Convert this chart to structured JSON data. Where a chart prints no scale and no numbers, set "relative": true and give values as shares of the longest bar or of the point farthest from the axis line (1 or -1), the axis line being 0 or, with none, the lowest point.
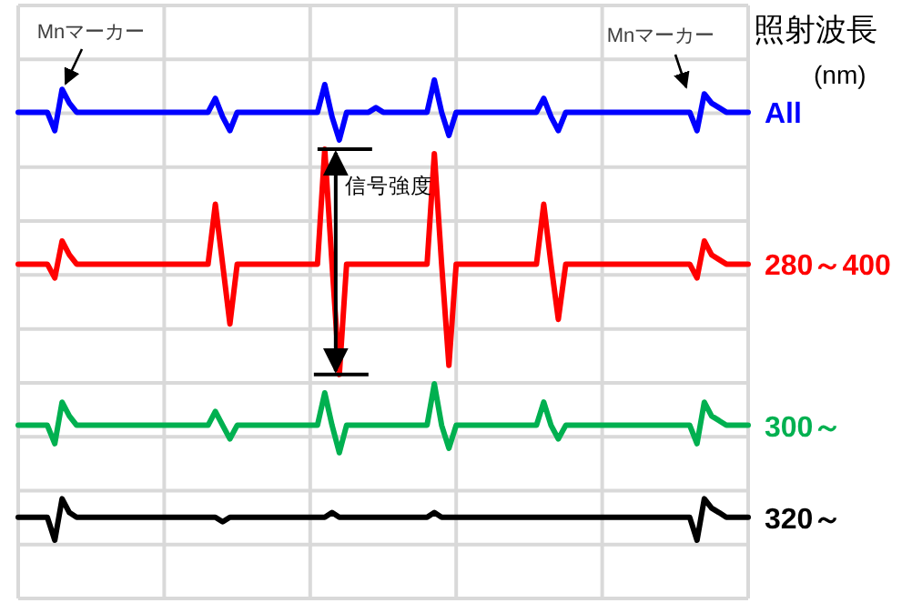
{
  "chart_data": {
    "type": "line",
    "relative": true,
    "grid": true,
    "legend_title": "照射波長 (nm)",
    "annotations": [
      "Mnマーカー",
      "Mnマーカー",
      "信号強度"
    ],
    "categories": [
      null,
      null,
      null,
      null,
      null,
      null,
      null,
      null,
      null,
      null,
      null,
      null,
      null,
      null,
      null,
      null,
      null,
      null,
      null,
      null,
      null,
      null,
      null,
      null,
      null,
      null,
      null,
      null,
      null,
      null,
      null,
      null,
      null,
      null,
      null,
      null,
      null,
      null,
      null,
      null,
      null,
      null,
      null,
      null,
      null,
      null,
      null,
      null,
      null,
      null,
      null,
      null,
      null,
      null,
      null,
      null,
      null,
      null,
      null,
      null,
      null,
      null,
      null,
      null,
      null,
      null,
      null,
      null,
      null,
      null,
      null,
      null,
      null,
      null,
      null,
      null,
      null,
      null,
      null,
      null,
      null,
      null,
      null,
      null,
      null,
      null,
      null,
      null,
      null,
      null,
      null,
      null,
      null,
      null,
      null,
      null,
      null,
      null,
      null,
      null,
      null
    ],
    "series": [
      {
        "name": "All",
        "color": "#0000ff",
        "values": [
          0.93,
          0.93,
          0.93,
          0.93,
          0.93,
          0.89,
          0.98,
          0.95,
          0.93,
          0.93,
          0.93,
          0.93,
          0.93,
          0.93,
          0.93,
          0.93,
          0.93,
          0.93,
          0.93,
          0.93,
          0.93,
          0.93,
          0.93,
          0.93,
          0.93,
          0.93,
          0.93,
          0.96,
          0.92,
          0.89,
          0.93,
          0.93,
          0.93,
          0.93,
          0.93,
          0.93,
          0.93,
          0.93,
          0.93,
          0.93,
          0.93,
          0.93,
          0.99,
          0.92,
          0.87,
          0.93,
          0.93,
          0.93,
          0.93,
          0.94,
          0.93,
          0.93,
          0.93,
          0.93,
          0.93,
          0.93,
          0.93,
          1.0,
          0.93,
          0.88,
          0.93,
          0.93,
          0.93,
          0.93,
          0.93,
          0.93,
          0.93,
          0.93,
          0.93,
          0.93,
          0.93,
          0.93,
          0.96,
          0.92,
          0.89,
          0.93,
          0.93,
          0.93,
          0.93,
          0.93,
          0.93,
          0.93,
          0.93,
          0.93,
          0.93,
          0.93,
          0.93,
          0.93,
          0.93,
          0.93,
          0.93,
          0.93,
          0.93,
          0.89,
          0.97,
          0.95,
          0.94,
          0.93,
          0.93,
          0.93,
          0.93
        ]
      },
      {
        "name": "280～400",
        "color": "#ff0000",
        "values": [
          0.6,
          0.6,
          0.6,
          0.6,
          0.6,
          0.57,
          0.65,
          0.62,
          0.6,
          0.6,
          0.6,
          0.6,
          0.6,
          0.6,
          0.6,
          0.6,
          0.6,
          0.6,
          0.6,
          0.6,
          0.6,
          0.6,
          0.6,
          0.6,
          0.6,
          0.6,
          0.6,
          0.73,
          0.6,
          0.47,
          0.6,
          0.6,
          0.6,
          0.6,
          0.6,
          0.6,
          0.6,
          0.6,
          0.6,
          0.6,
          0.6,
          0.6,
          0.85,
          0.6,
          0.36,
          0.6,
          0.6,
          0.6,
          0.6,
          0.6,
          0.6,
          0.6,
          0.6,
          0.6,
          0.6,
          0.6,
          0.6,
          0.84,
          0.6,
          0.38,
          0.6,
          0.6,
          0.6,
          0.6,
          0.6,
          0.6,
          0.6,
          0.6,
          0.6,
          0.6,
          0.6,
          0.6,
          0.73,
          0.6,
          0.48,
          0.6,
          0.6,
          0.6,
          0.6,
          0.6,
          0.6,
          0.6,
          0.6,
          0.6,
          0.6,
          0.6,
          0.6,
          0.6,
          0.6,
          0.6,
          0.6,
          0.6,
          0.6,
          0.57,
          0.65,
          0.62,
          0.61,
          0.6,
          0.6,
          0.6,
          0.6
        ]
      },
      {
        "name": "300～",
        "color": "#00b050",
        "values": [
          0.25,
          0.25,
          0.25,
          0.25,
          0.25,
          0.21,
          0.3,
          0.27,
          0.25,
          0.25,
          0.25,
          0.25,
          0.25,
          0.25,
          0.25,
          0.25,
          0.25,
          0.25,
          0.25,
          0.25,
          0.25,
          0.25,
          0.25,
          0.25,
          0.25,
          0.25,
          0.25,
          0.28,
          0.25,
          0.22,
          0.25,
          0.25,
          0.25,
          0.25,
          0.25,
          0.25,
          0.25,
          0.25,
          0.25,
          0.25,
          0.25,
          0.25,
          0.32,
          0.25,
          0.19,
          0.25,
          0.25,
          0.25,
          0.25,
          0.25,
          0.25,
          0.25,
          0.25,
          0.25,
          0.25,
          0.25,
          0.25,
          0.34,
          0.25,
          0.2,
          0.25,
          0.25,
          0.25,
          0.25,
          0.25,
          0.25,
          0.25,
          0.25,
          0.25,
          0.25,
          0.25,
          0.25,
          0.3,
          0.25,
          0.22,
          0.25,
          0.25,
          0.25,
          0.25,
          0.25,
          0.25,
          0.25,
          0.25,
          0.25,
          0.25,
          0.25,
          0.25,
          0.25,
          0.25,
          0.25,
          0.25,
          0.25,
          0.25,
          0.21,
          0.3,
          0.27,
          0.26,
          0.25,
          0.25,
          0.25,
          0.25
        ]
      },
      {
        "name": "320～",
        "color": "#000000",
        "values": [
          0.05,
          0.05,
          0.05,
          0.05,
          0.05,
          0.0,
          0.09,
          0.06,
          0.05,
          0.05,
          0.05,
          0.05,
          0.05,
          0.05,
          0.05,
          0.05,
          0.05,
          0.05,
          0.05,
          0.05,
          0.05,
          0.05,
          0.05,
          0.05,
          0.05,
          0.05,
          0.05,
          0.05,
          0.04,
          0.05,
          0.05,
          0.05,
          0.05,
          0.05,
          0.05,
          0.05,
          0.05,
          0.05,
          0.05,
          0.05,
          0.05,
          0.05,
          0.05,
          0.06,
          0.05,
          0.05,
          0.05,
          0.05,
          0.05,
          0.05,
          0.05,
          0.05,
          0.05,
          0.05,
          0.05,
          0.05,
          0.05,
          0.06,
          0.05,
          0.05,
          0.05,
          0.05,
          0.05,
          0.05,
          0.05,
          0.05,
          0.05,
          0.05,
          0.05,
          0.05,
          0.05,
          0.05,
          0.05,
          0.05,
          0.05,
          0.05,
          0.05,
          0.05,
          0.05,
          0.05,
          0.05,
          0.05,
          0.05,
          0.05,
          0.05,
          0.05,
          0.05,
          0.05,
          0.05,
          0.05,
          0.05,
          0.05,
          0.05,
          0.0,
          0.09,
          0.07,
          0.06,
          0.05,
          0.05,
          0.05,
          0.05
        ]
      }
    ]
  }
}
